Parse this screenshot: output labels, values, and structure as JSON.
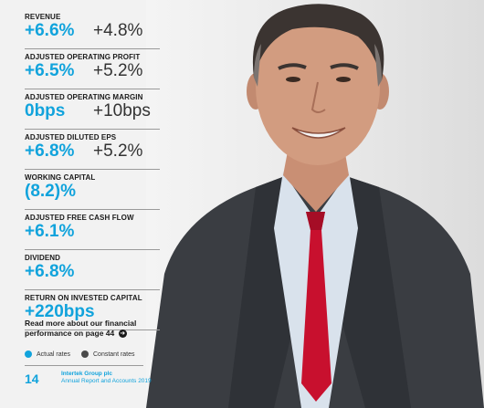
{
  "metrics": [
    {
      "label": "REVENUE",
      "actual": "+6.6%",
      "constant": "+4.8%"
    },
    {
      "label": "ADJUSTED OPERATING PROFIT",
      "actual": "+6.5%",
      "constant": "+5.2%"
    },
    {
      "label": "ADJUSTED OPERATING MARGIN",
      "actual": "0bps",
      "constant": "+10bps"
    },
    {
      "label": "ADJUSTED DILUTED EPS",
      "actual": "+6.8%",
      "constant": "+5.2%"
    },
    {
      "label": "WORKING CAPITAL",
      "actual": "(8.2)%",
      "constant": ""
    },
    {
      "label": "ADJUSTED FREE CASH FLOW",
      "actual": "+6.1%",
      "constant": ""
    },
    {
      "label": "DIVIDEND",
      "actual": "+6.8%",
      "constant": ""
    },
    {
      "label": "RETURN ON INVESTED CAPITAL",
      "actual": "+220bps",
      "constant": ""
    }
  ],
  "read_more": {
    "line1": "Read more about our financial",
    "line2": "performance on page 44",
    "arrow": "arrow-right-icon"
  },
  "legend": {
    "actual_label": "Actual rates",
    "constant_label": "Constant rates",
    "actual_color": "#11a3dc",
    "constant_color": "#4a4a4a"
  },
  "footer": {
    "page_number": "14",
    "company": "Intertek Group plc",
    "report": "Annual Report and Accounts 2019"
  },
  "colors": {
    "accent": "#11a3dc",
    "text": "#1a1a1a",
    "suit": "#3a3d42",
    "tie": "#c8102e"
  }
}
